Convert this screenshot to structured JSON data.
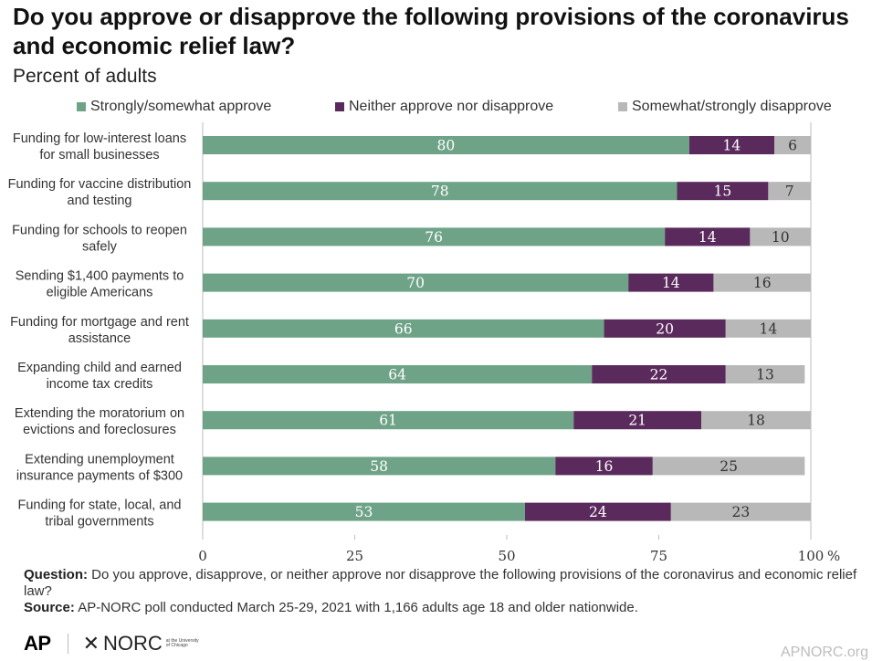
{
  "title": "Do you approve or disapprove the following provisions of the coronavirus and economic relief law?",
  "subtitle": "Percent of adults",
  "colors": {
    "approve": "#6fa388",
    "neither": "#5a2a5c",
    "disapprove": "#b8b8b8",
    "axis": "#bdbdbd"
  },
  "legend": [
    {
      "label": "Strongly/somewhat approve",
      "color": "#6fa388"
    },
    {
      "label": "Neither approve nor disapprove",
      "color": "#5a2a5c"
    },
    {
      "label": "Somewhat/strongly disapprove",
      "color": "#b8b8b8"
    }
  ],
  "chart_data": {
    "type": "bar",
    "orientation": "horizontal",
    "stacked": true,
    "categories": [
      [
        "Funding for low-interest loans",
        "for small businesses"
      ],
      [
        "Funding for vaccine distribution",
        "and testing"
      ],
      [
        "Funding for schools to reopen",
        "safely"
      ],
      [
        "Sending $1,400 payments to",
        "eligible Americans"
      ],
      [
        "Funding for mortgage and rent",
        "assistance"
      ],
      [
        "Expanding child and earned",
        "income tax credits"
      ],
      [
        "Extending the moratorium on",
        "evictions and foreclosures"
      ],
      [
        "Extending unemployment",
        "insurance payments of $300"
      ],
      [
        "Funding for state, local, and",
        "tribal governments"
      ]
    ],
    "series": [
      {
        "name": "Strongly/somewhat approve",
        "values": [
          80,
          78,
          76,
          70,
          66,
          64,
          61,
          58,
          53
        ]
      },
      {
        "name": "Neither approve nor disapprove",
        "values": [
          14,
          15,
          14,
          14,
          20,
          22,
          21,
          16,
          24
        ]
      },
      {
        "name": "Somewhat/strongly disapprove",
        "values": [
          6,
          7,
          10,
          16,
          14,
          13,
          18,
          25,
          23
        ]
      }
    ],
    "xlim": [
      0,
      100
    ],
    "xticks": [
      "0",
      "25",
      "50",
      "75",
      "100"
    ],
    "xunit": "%",
    "legend_position": "top"
  },
  "notes": {
    "question_label": "Question:",
    "question_text": "Do you approve, disapprove, or neither approve nor disapprove the following provisions of the coronavirus and economic relief law?",
    "source_label": "Source:",
    "source_text": "AP-NORC poll conducted March 25-29, 2021 with 1,166 adults age 18 and older nationwide."
  },
  "logos": {
    "ap": "AP",
    "norc": "NORC",
    "norc_small": "at the University of Chicago"
  },
  "site": "APNORC.org"
}
